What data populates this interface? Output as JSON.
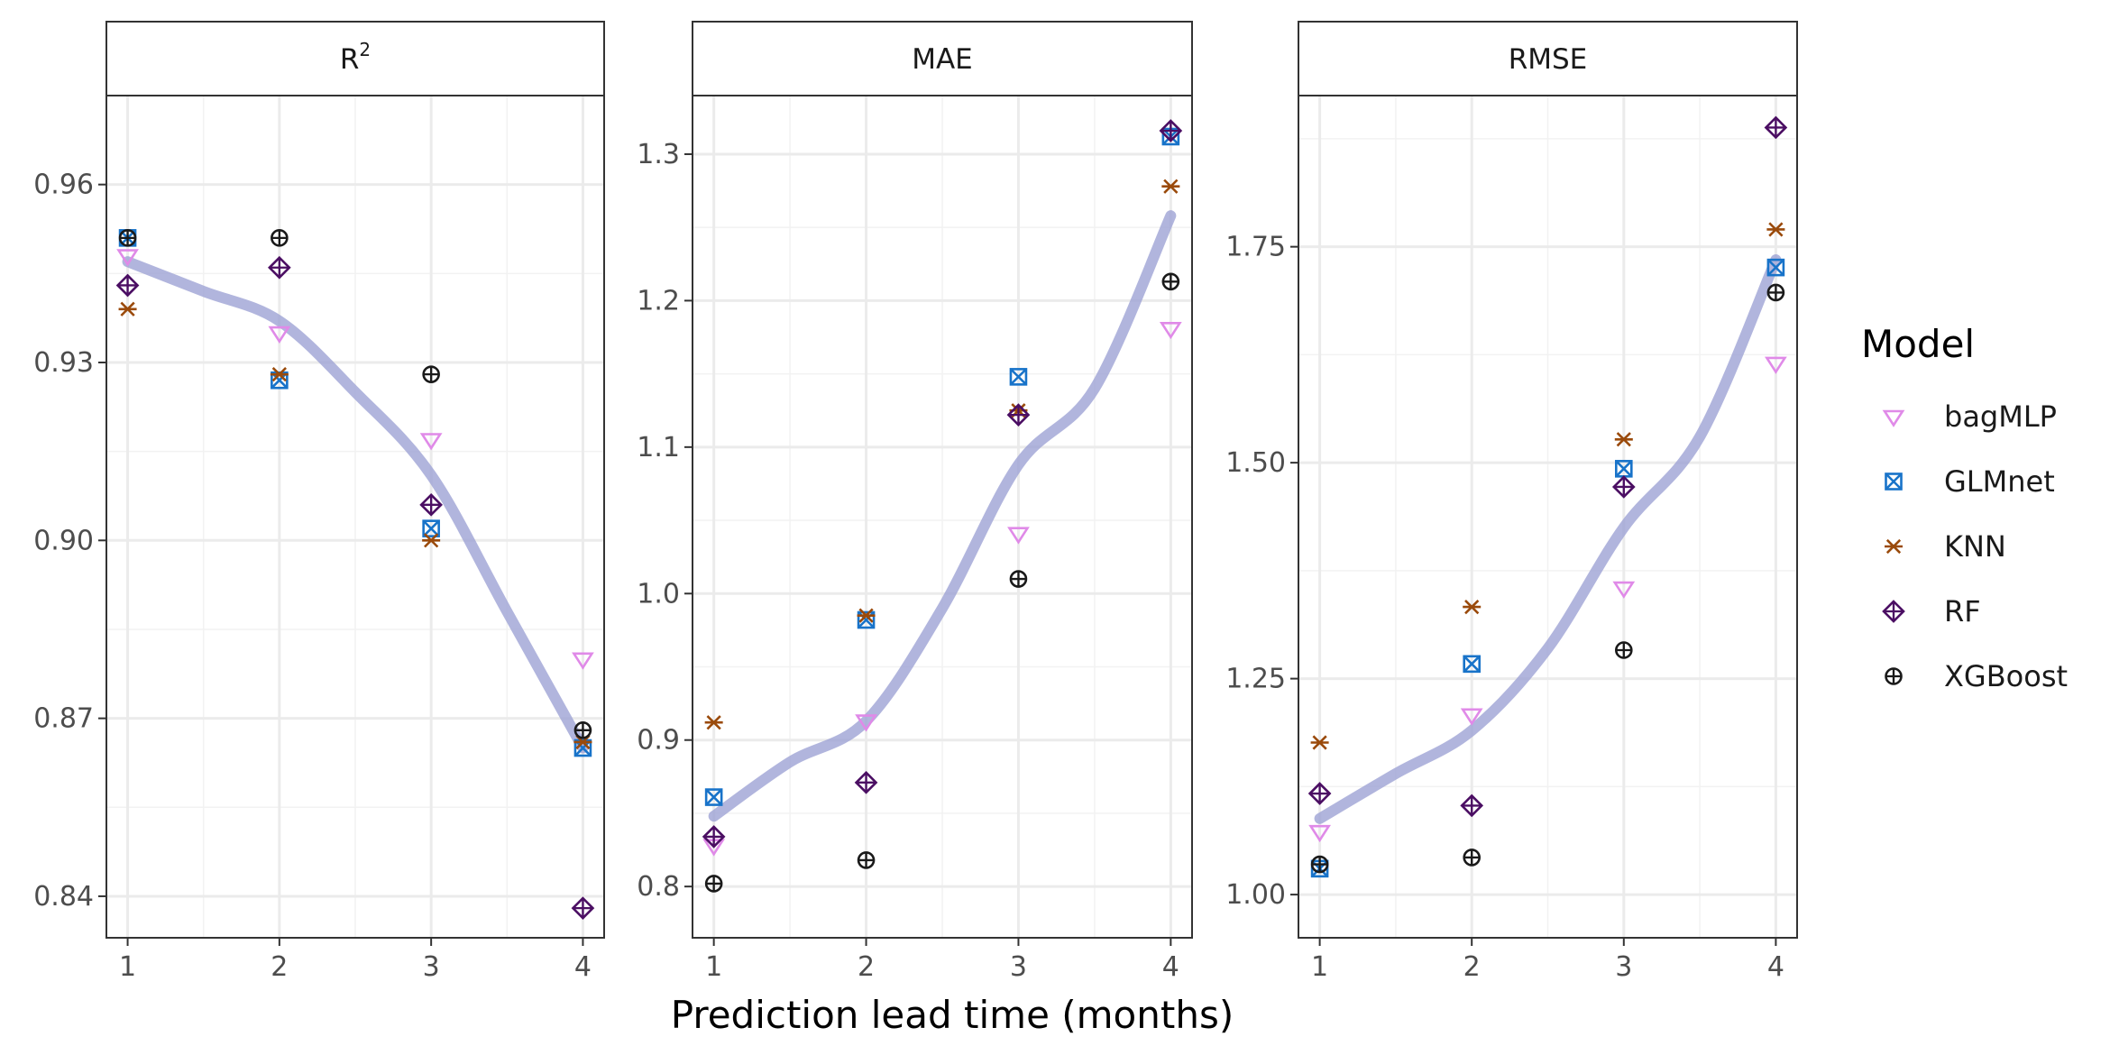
{
  "chart_data": {
    "type": "scatter",
    "xlabel": "Prediction lead time (months)",
    "x_ticks": [
      1,
      2,
      3,
      4
    ],
    "legend": {
      "title": "Model",
      "position": "right",
      "entries": [
        {
          "name": "bagMLP",
          "color": "#e08ae8",
          "shape": "triangle-down-open"
        },
        {
          "name": "GLMnet",
          "color": "#1873c9",
          "shape": "square-cross"
        },
        {
          "name": "KNN",
          "color": "#9a4a0b",
          "shape": "asterisk"
        },
        {
          "name": "RF",
          "color": "#4b0e63",
          "shape": "diamond-plus"
        },
        {
          "name": "XGBoost",
          "color": "#1a1a1a",
          "shape": "circle-plus"
        }
      ]
    },
    "trend_color": "#9ea2d4",
    "grid": true,
    "panels": [
      {
        "strip_base": "R",
        "strip_sup": "2",
        "ylim": [
          0.833,
          0.975
        ],
        "y_ticks": [
          0.84,
          0.87,
          0.9,
          0.93,
          0.96
        ],
        "y_tick_labels": [
          "0.84",
          "0.87",
          "0.90",
          "0.93",
          "0.96"
        ],
        "series": [
          {
            "name": "bagMLP",
            "x": [
              1,
              2,
              3,
              4
            ],
            "y": [
              0.948,
              0.935,
              0.917,
              0.88
            ]
          },
          {
            "name": "GLMnet",
            "x": [
              1,
              2,
              3,
              4
            ],
            "y": [
              0.951,
              0.927,
              0.902,
              0.865
            ]
          },
          {
            "name": "KNN",
            "x": [
              1,
              2,
              3,
              4
            ],
            "y": [
              0.939,
              0.928,
              0.9,
              0.866
            ]
          },
          {
            "name": "RF",
            "x": [
              1,
              2,
              3,
              4
            ],
            "y": [
              0.943,
              0.946,
              0.906,
              0.838
            ]
          },
          {
            "name": "XGBoost",
            "x": [
              1,
              2,
              3,
              4
            ],
            "y": [
              0.951,
              0.951,
              0.928,
              0.868
            ]
          }
        ],
        "trend": {
          "x": [
            1,
            1.5,
            2,
            2.5,
            3,
            3.5,
            4
          ],
          "y": [
            0.947,
            0.942,
            0.937,
            0.925,
            0.911,
            0.888,
            0.865
          ]
        }
      },
      {
        "strip_base": "MAE",
        "strip_sup": "",
        "ylim": [
          0.765,
          1.34
        ],
        "y_ticks": [
          0.8,
          0.9,
          1.0,
          1.1,
          1.2,
          1.3
        ],
        "y_tick_labels": [
          "0.8",
          "0.9",
          "1.0",
          "1.1",
          "1.2",
          "1.3"
        ],
        "series": [
          {
            "name": "bagMLP",
            "x": [
              1,
              2,
              3,
              4
            ],
            "y": [
              0.828,
              0.913,
              1.041,
              1.181
            ]
          },
          {
            "name": "GLMnet",
            "x": [
              1,
              2,
              3,
              4
            ],
            "y": [
              0.861,
              0.982,
              1.148,
              1.312
            ]
          },
          {
            "name": "KNN",
            "x": [
              1,
              2,
              3,
              4
            ],
            "y": [
              0.912,
              0.985,
              1.125,
              1.278
            ]
          },
          {
            "name": "RF",
            "x": [
              1,
              2,
              3,
              4
            ],
            "y": [
              0.834,
              0.871,
              1.122,
              1.316
            ]
          },
          {
            "name": "XGBoost",
            "x": [
              1,
              2,
              3,
              4
            ],
            "y": [
              0.802,
              0.818,
              1.01,
              1.213
            ]
          }
        ],
        "trend": {
          "x": [
            1,
            1.5,
            2,
            2.5,
            3,
            3.5,
            4
          ],
          "y": [
            0.848,
            0.885,
            0.913,
            0.99,
            1.088,
            1.14,
            1.258
          ]
        }
      },
      {
        "strip_base": "RMSE",
        "strip_sup": "",
        "ylim": [
          0.95,
          1.925
        ],
        "y_ticks": [
          1.0,
          1.25,
          1.5,
          1.75
        ],
        "y_tick_labels": [
          "1.00",
          "1.25",
          "1.50",
          "1.75"
        ],
        "series": [
          {
            "name": "bagMLP",
            "x": [
              1,
              2,
              3,
              4
            ],
            "y": [
              1.073,
              1.208,
              1.355,
              1.615
            ]
          },
          {
            "name": "GLMnet",
            "x": [
              1,
              2,
              3,
              4
            ],
            "y": [
              1.03,
              1.267,
              1.493,
              1.726
            ]
          },
          {
            "name": "KNN",
            "x": [
              1,
              2,
              3,
              4
            ],
            "y": [
              1.176,
              1.333,
              1.527,
              1.77
            ]
          },
          {
            "name": "RF",
            "x": [
              1,
              2,
              3,
              4
            ],
            "y": [
              1.117,
              1.103,
              1.472,
              1.888
            ]
          },
          {
            "name": "XGBoost",
            "x": [
              1,
              2,
              3,
              4
            ],
            "y": [
              1.035,
              1.043,
              1.283,
              1.697
            ]
          }
        ],
        "trend": {
          "x": [
            1,
            1.5,
            2,
            2.5,
            3,
            3.5,
            4
          ],
          "y": [
            1.088,
            1.14,
            1.19,
            1.285,
            1.425,
            1.53,
            1.735
          ]
        }
      }
    ]
  }
}
